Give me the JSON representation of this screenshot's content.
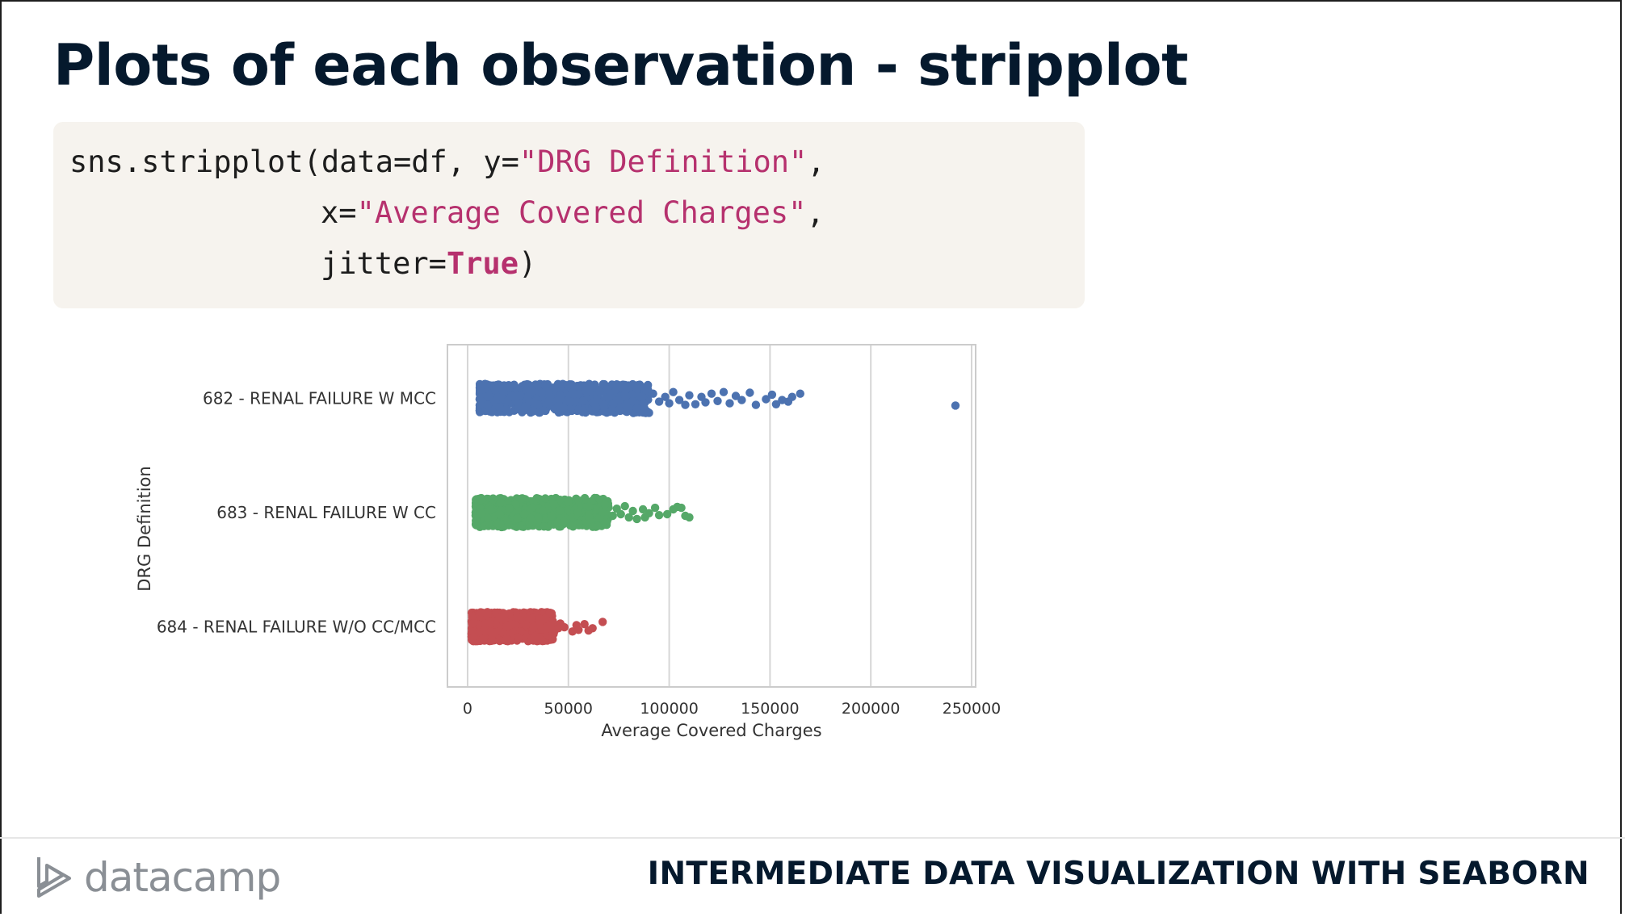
{
  "slide": {
    "title": "Plots of each observation - stripplot",
    "footer_brand": "datacamp",
    "footer_course": "INTERMEDIATE DATA VISUALIZATION WITH SEABORN"
  },
  "code": {
    "line1_a": "sns.stripplot(data=df, y=",
    "line1_str": "\"DRG Definition\"",
    "line1_b": ",",
    "line2_a": "x=",
    "line2_str": "\"Average Covered Charges\"",
    "line2_b": ",",
    "line3_a": "jitter=",
    "line3_kw": "True",
    "line3_b": ")"
  },
  "chart_data": {
    "type": "scatter",
    "subtype": "stripplot",
    "xlabel": "Average Covered Charges",
    "ylabel": "DRG Definition",
    "xlim": [
      -10000,
      252000
    ],
    "xticks": [
      0,
      50000,
      100000,
      150000,
      200000,
      250000
    ],
    "xtick_labels": [
      "0",
      "50000",
      "100000",
      "150000",
      "200000",
      "250000"
    ],
    "grid": "vertical",
    "jitter": true,
    "categories": [
      "682 - RENAL FAILURE W MCC",
      "683 - RENAL FAILURE W CC",
      "684 - RENAL FAILURE W/O CC/MCC"
    ],
    "series": [
      {
        "category": "682 - RENAL FAILURE W MCC",
        "color": "#4c72b0",
        "dense_range": [
          6000,
          90000
        ],
        "outliers": [
          [
            92000,
            -0.15
          ],
          [
            95000,
            0.1
          ],
          [
            98000,
            -0.05
          ],
          [
            100000,
            0.15
          ],
          [
            102000,
            -0.2
          ],
          [
            105000,
            0.05
          ],
          [
            108000,
            0.2
          ],
          [
            110000,
            -0.1
          ],
          [
            113000,
            0.18
          ],
          [
            116000,
            -0.05
          ],
          [
            118000,
            0.12
          ],
          [
            121000,
            -0.15
          ],
          [
            124000,
            0.08
          ],
          [
            127000,
            -0.2
          ],
          [
            130000,
            0.15
          ],
          [
            133000,
            -0.08
          ],
          [
            136000,
            0.05
          ],
          [
            140000,
            -0.18
          ],
          [
            143000,
            0.2
          ],
          [
            148000,
            0.02
          ],
          [
            151000,
            -0.12
          ],
          [
            153000,
            0.18
          ],
          [
            156000,
            0.05
          ],
          [
            159000,
            0.1
          ],
          [
            161000,
            -0.05
          ],
          [
            165000,
            -0.15
          ],
          [
            242000,
            0.22
          ]
        ]
      },
      {
        "category": "683 - RENAL FAILURE W CC",
        "color": "#55a868",
        "dense_range": [
          4000,
          70000
        ],
        "outliers": [
          [
            72000,
            0.1
          ],
          [
            74000,
            -0.12
          ],
          [
            76000,
            0.05
          ],
          [
            78000,
            -0.2
          ],
          [
            80000,
            0.15
          ],
          [
            82000,
            -0.05
          ],
          [
            84000,
            0.2
          ],
          [
            87000,
            -0.1
          ],
          [
            88000,
            0.15
          ],
          [
            90000,
            0.02
          ],
          [
            93000,
            -0.15
          ],
          [
            95000,
            0.08
          ],
          [
            99000,
            0.05
          ],
          [
            102000,
            -0.1
          ],
          [
            104000,
            -0.18
          ],
          [
            106000,
            -0.15
          ],
          [
            108000,
            0.1
          ],
          [
            110000,
            0.15
          ]
        ]
      },
      {
        "category": "684 - RENAL FAILURE W/O CC/MCC",
        "color": "#c44e52",
        "dense_range": [
          2000,
          43000
        ],
        "outliers": [
          [
            45000,
            0.05
          ],
          [
            46000,
            -0.1
          ],
          [
            48000,
            0.02
          ],
          [
            52000,
            0.15
          ],
          [
            54000,
            -0.05
          ],
          [
            55000,
            0.1
          ],
          [
            58000,
            -0.08
          ],
          [
            60000,
            0.12
          ],
          [
            62000,
            0.05
          ],
          [
            67000,
            -0.15
          ]
        ]
      }
    ]
  }
}
